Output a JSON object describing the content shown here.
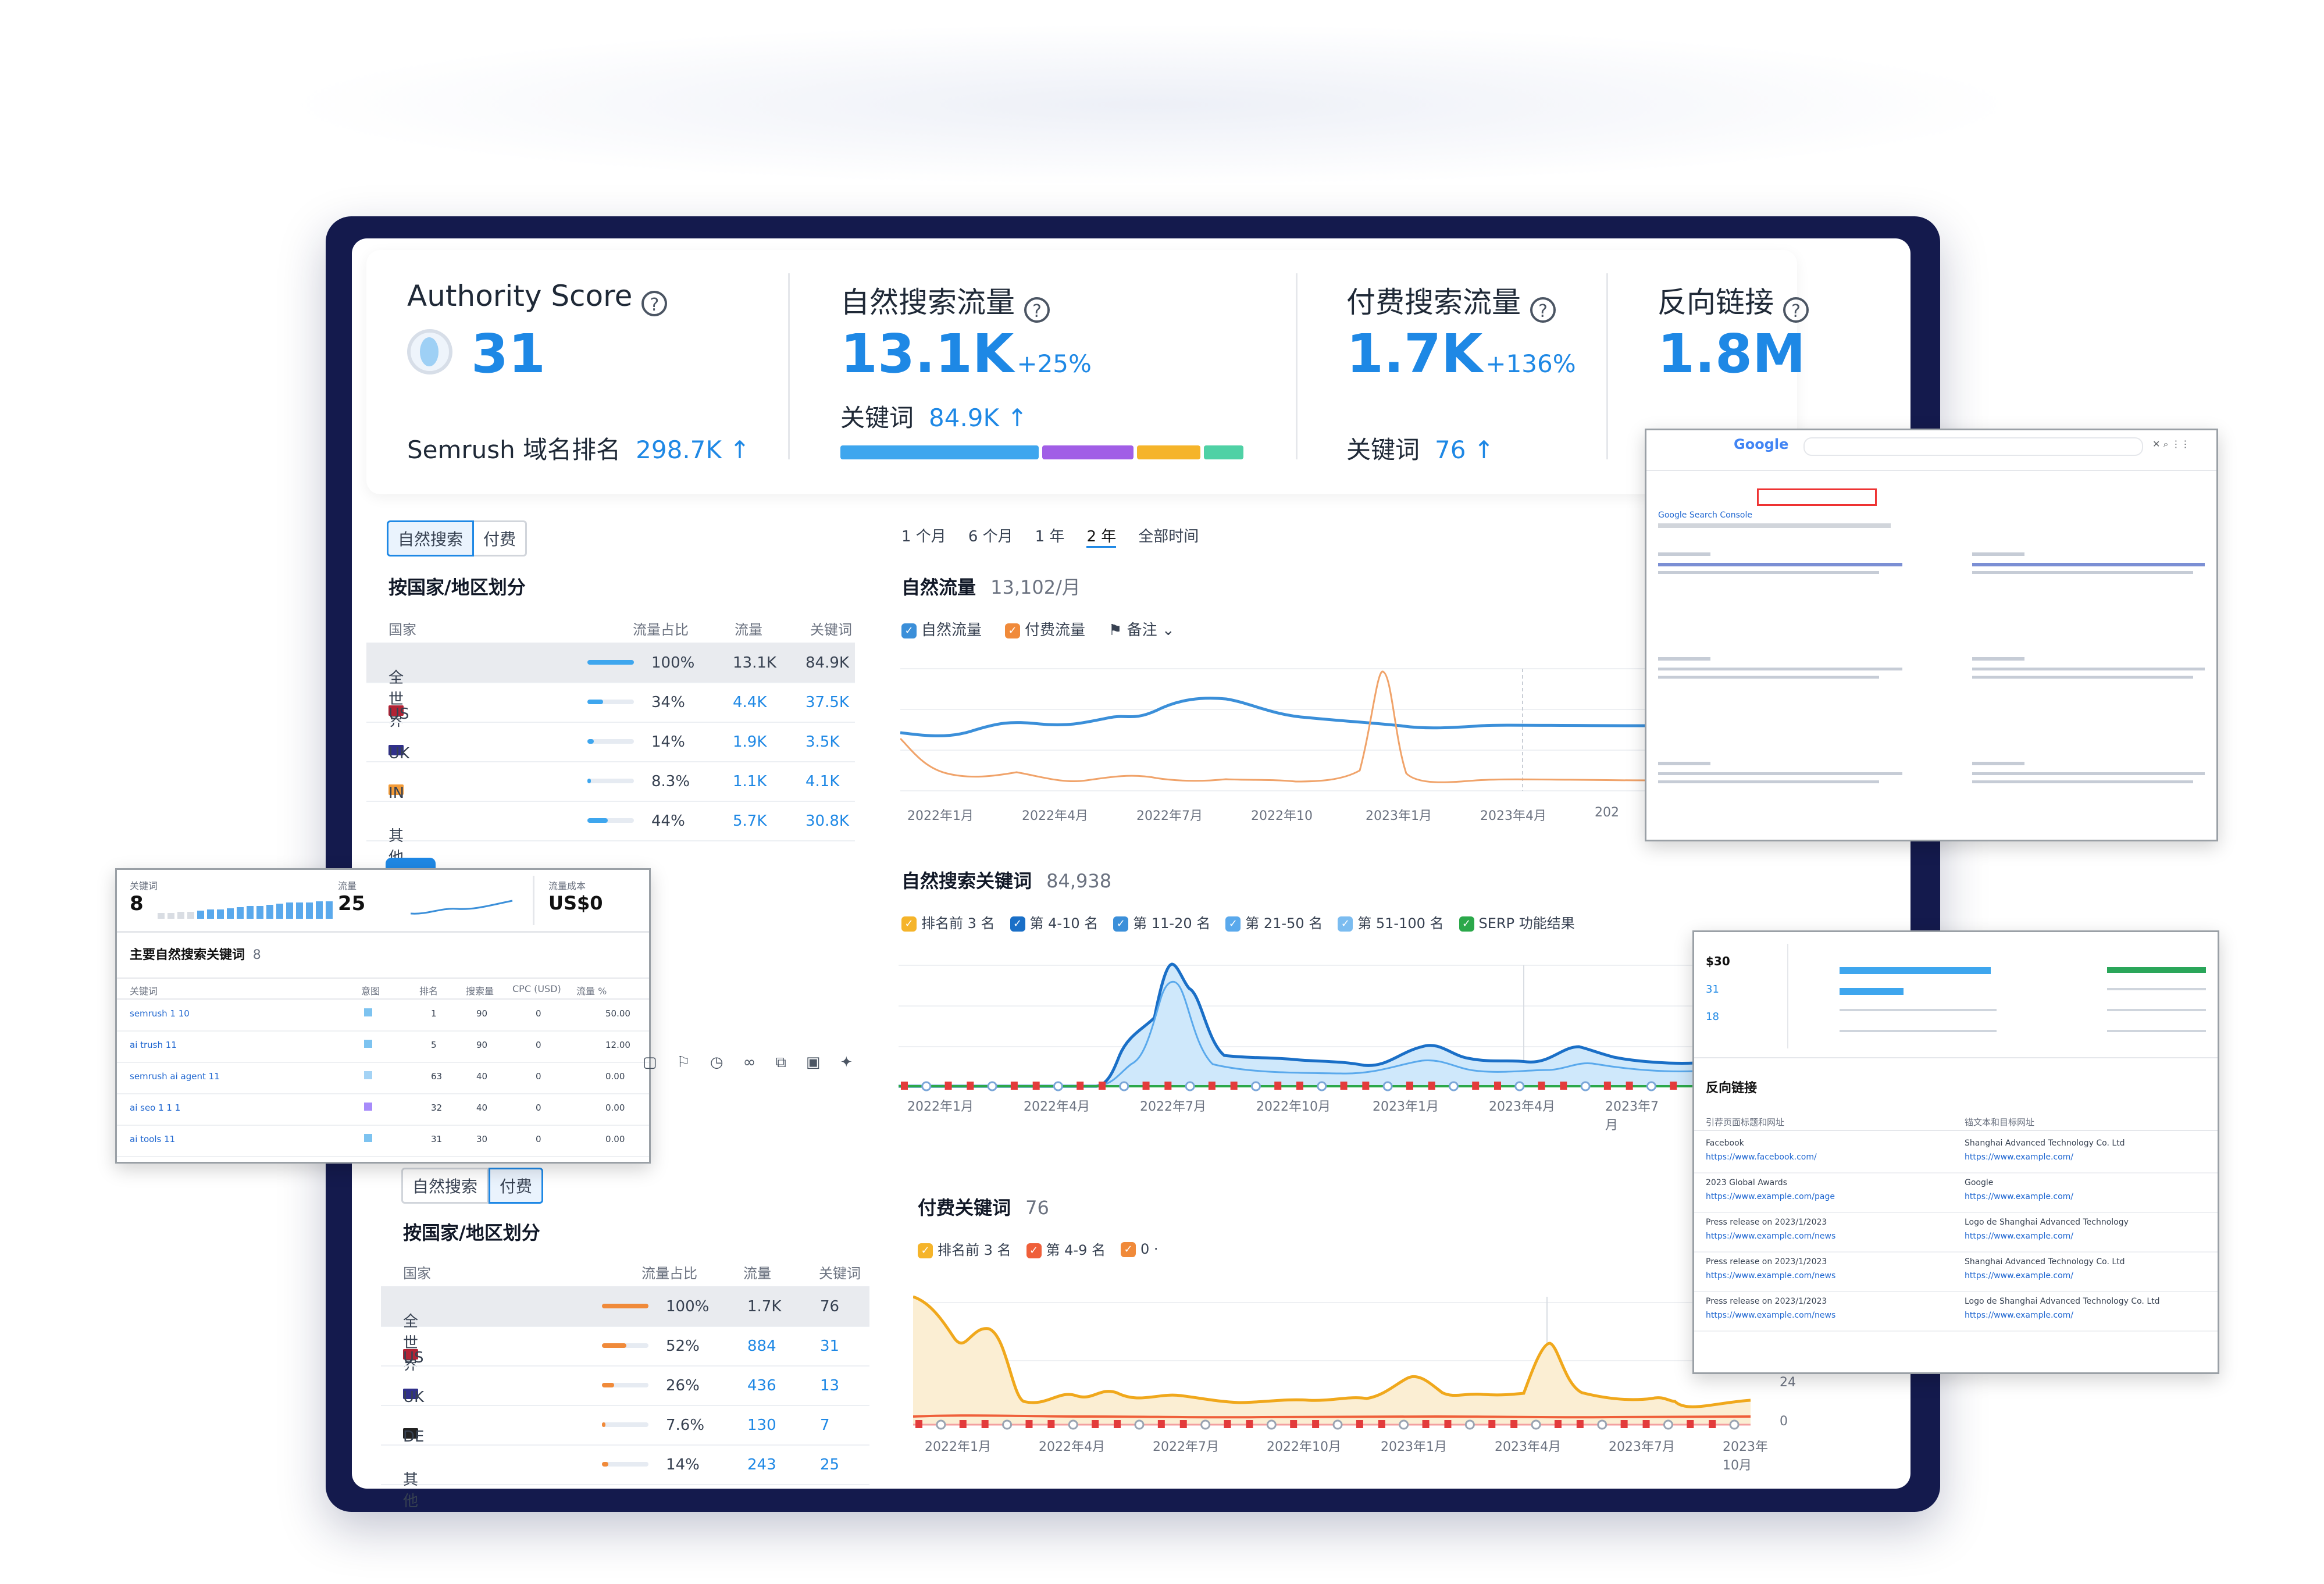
{
  "metrics": {
    "authority": {
      "title": "Authority Score",
      "value": "31",
      "sub_label": "Semrush 域名排名",
      "sub_value": "298.7K ↑"
    },
    "organic": {
      "title": "自然搜索流量",
      "value": "13.1K",
      "delta": "+25%",
      "sub_label": "关键词",
      "sub_value": "84.9K ↑"
    },
    "paid": {
      "title": "付费搜索流量",
      "value": "1.7K",
      "delta": "+136%",
      "sub_label": "关键词",
      "sub_value": "76 ↑"
    },
    "backlinks": {
      "title": "反向链接",
      "value": "1.8M"
    }
  },
  "organic_keyword_bar": [
    {
      "color": "#3ea6ee",
      "share": 0.5
    },
    {
      "color": "#a15ee6",
      "share": 0.23
    },
    {
      "color": "#f5b42a",
      "share": 0.16
    },
    {
      "color": "#4fd1a5",
      "share": 0.1
    }
  ],
  "upper_panel": {
    "tabs": [
      "自然搜索",
      "付费"
    ],
    "section_title": "按国家/地区划分",
    "headers": [
      "国家",
      "流量占比",
      "流量",
      "关键词"
    ],
    "rows": [
      {
        "country": "全世界",
        "share": "100%",
        "traffic": "13.1K",
        "keywords": "84.9K",
        "fill": 1.0
      },
      {
        "country": "US",
        "share": "34%",
        "traffic": "4.4K",
        "keywords": "37.5K",
        "fill": 0.34
      },
      {
        "country": "UK",
        "share": "14%",
        "traffic": "1.9K",
        "keywords": "3.5K",
        "fill": 0.14
      },
      {
        "country": "IN",
        "share": "8.3%",
        "traffic": "1.1K",
        "keywords": "4.1K",
        "fill": 0.08
      },
      {
        "country": "其他",
        "share": "44%",
        "traffic": "5.7K",
        "keywords": "30.8K",
        "fill": 0.44
      }
    ]
  },
  "period_tabs": [
    "1 个月",
    "6 个月",
    "1 年",
    "2 年",
    "全部时间"
  ],
  "traffic_chart": {
    "title": "自然流量",
    "title_value": "13,102/月",
    "legend": [
      "自然流量",
      "付费流量"
    ],
    "notes_label": "备注",
    "x_labels": [
      "2022年1月",
      "2022年4月",
      "2022年7月",
      "2022年10",
      "2023年1月",
      "2023年4月",
      "202"
    ]
  },
  "keywords_chart": {
    "title": "自然搜索关键词",
    "title_value": "84,938",
    "legend": [
      "排名前 3 名",
      "第 4-10 名",
      "第 11-20 名",
      "第 21-50 名",
      "第 51-100 名",
      "SERP 功能结果"
    ],
    "x_labels": [
      "2022年1月",
      "2022年4月",
      "2022年7月",
      "2022年10月",
      "2023年1月",
      "2023年4月",
      "2023年7月"
    ]
  },
  "paid_chart": {
    "title": "付费关键词",
    "title_value": "76",
    "legend": [
      "排名前 3 名",
      "第 4-9 名",
      "0 ·"
    ],
    "x_labels": [
      "2022年1月",
      "2022年4月",
      "2022年7月",
      "2022年10月",
      "2023年1月",
      "2023年4月",
      "2023年7月",
      "2023年10月"
    ],
    "y_labels": [
      "24",
      "0"
    ]
  },
  "lower_panel": {
    "tabs": [
      "自然搜索",
      "付费"
    ],
    "section_title": "按国家/地区划分",
    "headers": [
      "国家",
      "流量占比",
      "流量",
      "关键词"
    ],
    "rows": [
      {
        "country": "全世界",
        "share": "100%",
        "traffic": "1.7K",
        "keywords": "76",
        "fill": 1.0
      },
      {
        "country": "US",
        "share": "52%",
        "traffic": "884",
        "keywords": "31",
        "fill": 0.52
      },
      {
        "country": "UK",
        "share": "26%",
        "traffic": "436",
        "keywords": "13",
        "fill": 0.26
      },
      {
        "country": "DE",
        "share": "7.6%",
        "traffic": "130",
        "keywords": "7",
        "fill": 0.08
      },
      {
        "country": "其他",
        "share": "14%",
        "traffic": "243",
        "keywords": "25",
        "fill": 0.14
      }
    ]
  },
  "left_overlay": {
    "stats": [
      {
        "label": "关键词",
        "value": "8"
      },
      {
        "label": "流量",
        "value": "25"
      },
      {
        "label": "流量成本",
        "value": "US$0"
      }
    ],
    "title": "主要自然搜索关键词",
    "title_count": "8",
    "headers": [
      "关键词",
      "意图",
      "排名",
      "搜索量",
      "CPC (USD)",
      "流量 %"
    ],
    "rows": [
      {
        "kw": "semrush 1 10",
        "pos": "1",
        "vol": "90",
        "cpc": "0",
        "pct": "50.00"
      },
      {
        "kw": "ai trush 11",
        "pos": "5",
        "vol": "90",
        "cpc": "0",
        "pct": "12.00"
      },
      {
        "kw": "semrush ai agent 11",
        "pos": "63",
        "vol": "40",
        "cpc": "0",
        "pct": "0.00"
      },
      {
        "kw": "ai seo 1 1 1",
        "pos": "32",
        "vol": "40",
        "cpc": "0",
        "pct": "0.00"
      },
      {
        "kw": "ai tools 11",
        "pos": "31",
        "vol": "30",
        "cpc": "0",
        "pct": "0.00"
      }
    ]
  },
  "serp_overlay": {
    "logo": "Google",
    "results_label": "Google Search Console"
  },
  "right_overlay": {
    "title": "反向链接",
    "col_headers": [
      "引荐页面标题和网址",
      "锚文本和目标网址"
    ],
    "rows": [
      {
        "title": "Facebook",
        "url": "https://www.facebook.com/",
        "anchor": "Shanghai Advanced Technology Co. Ltd",
        "target": "https://www.example.com/"
      },
      {
        "title": "2023 Global Awards",
        "url": "https://www.example.com/page",
        "anchor": "Google",
        "target": "https://www.example.com/"
      },
      {
        "title": "Press release on 2023/1/2023",
        "url": "https://www.example.com/news",
        "anchor": "Logo de Shanghai Advanced Technology",
        "target": "https://www.example.com/"
      },
      {
        "title": "Press release on 2023/1/2023",
        "url": "https://www.example.com/news",
        "anchor": "Shanghai Advanced Technology Co. Ltd",
        "target": "https://www.example.com/"
      },
      {
        "title": "Press release on 2023/1/2023",
        "url": "https://www.example.com/news",
        "anchor": "Logo de Shanghai Advanced Technology Co. Ltd",
        "target": "https://www.example.com/"
      }
    ],
    "mini_values": [
      "$30",
      "31",
      "18"
    ]
  },
  "colors": {
    "accent": "#1e88e5",
    "frame": "#141a4d",
    "organic": "#3b8fd9",
    "paid": "#f0a36a",
    "paid_area": "#f5b942"
  }
}
